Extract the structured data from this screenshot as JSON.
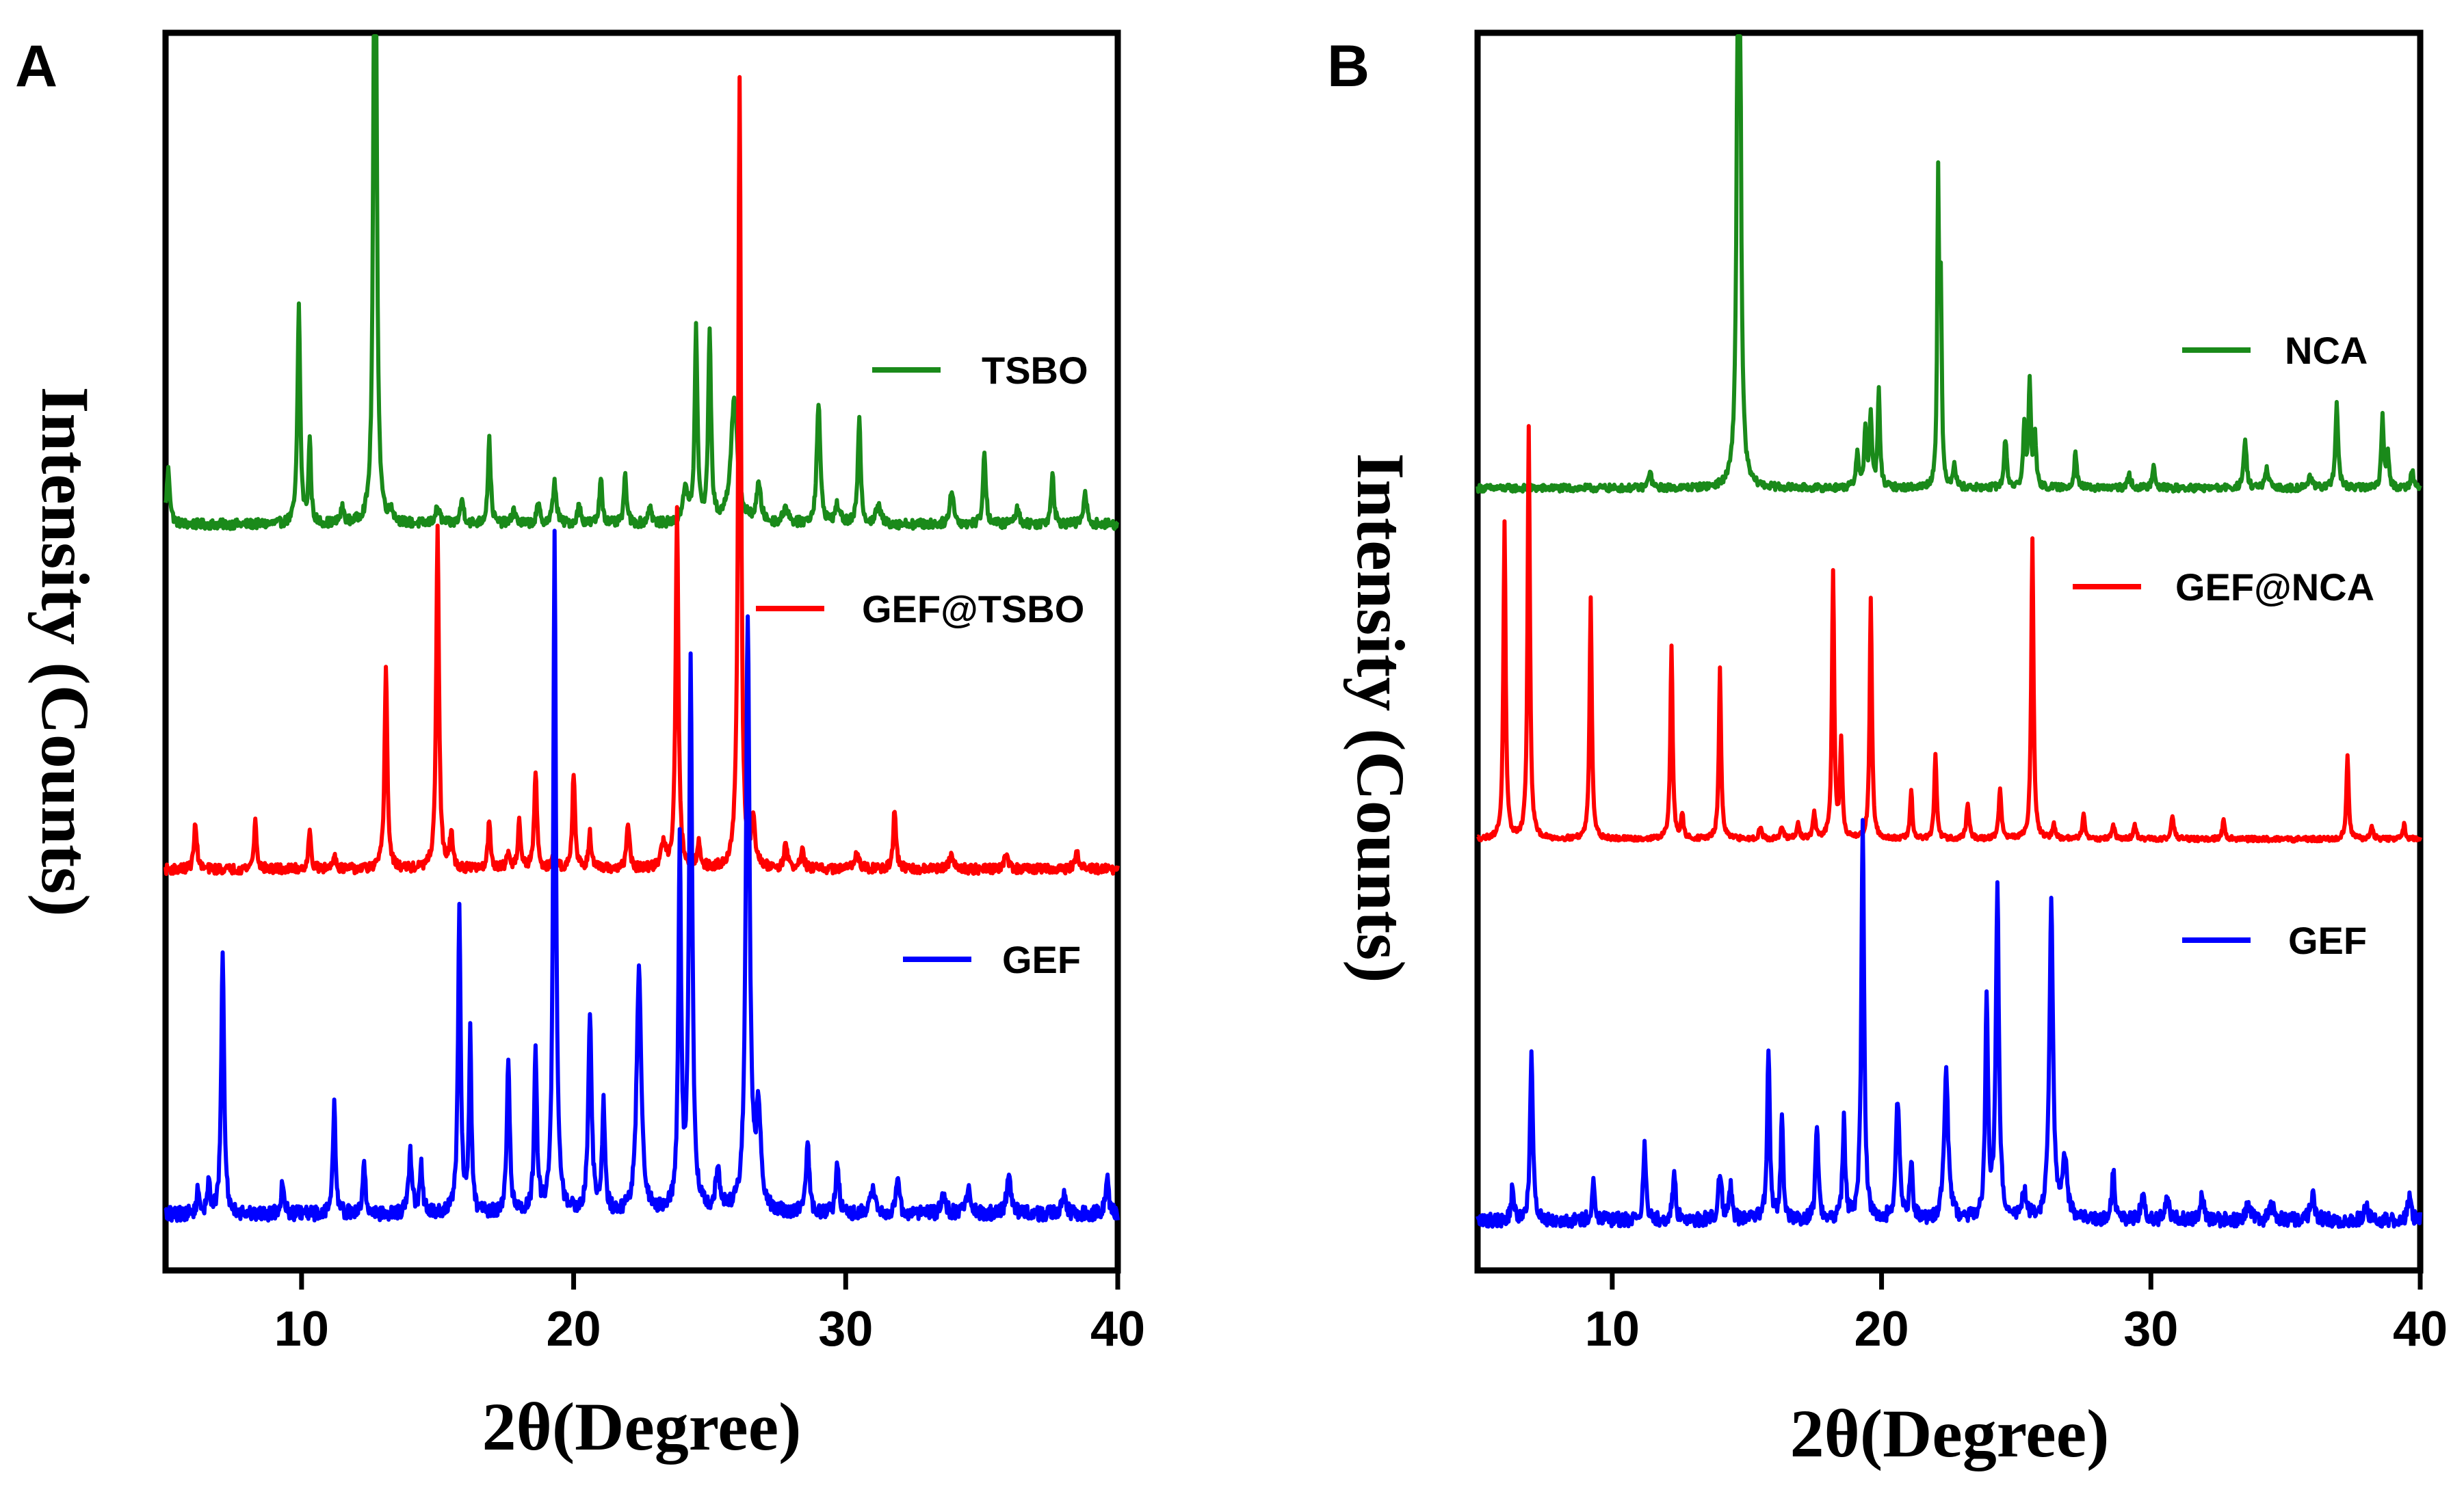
{
  "chart_data": [
    {
      "type": "line",
      "panel_label": "A",
      "xlabel": "2θ(Degree)",
      "ylabel": "Intensity (Counts)",
      "xlim": [
        5,
        40
      ],
      "xticks": [
        10,
        20,
        30,
        40
      ],
      "x_tick_labels": [
        "10",
        "20",
        "30",
        "40"
      ],
      "y_ticks": "none",
      "series": [
        {
          "name": "TSBO",
          "color": "#1a8a1a",
          "baseline": 0.605,
          "noise": 0.004,
          "peaks": [
            [
              5.1,
              0.045,
              0.15
            ],
            [
              9.9,
              0.18,
              0.12
            ],
            [
              10.3,
              0.07,
              0.1
            ],
            [
              11.5,
              0.012,
              0.15
            ],
            [
              12.7,
              0.92,
              0.1
            ],
            [
              13.3,
              0.01,
              0.15
            ],
            [
              15.0,
              0.013,
              0.2
            ],
            [
              15.9,
              0.02,
              0.15
            ],
            [
              16.9,
              0.07,
              0.12
            ],
            [
              17.8,
              0.012,
              0.15
            ],
            [
              18.7,
              0.015,
              0.15
            ],
            [
              19.3,
              0.035,
              0.15
            ],
            [
              20.2,
              0.015,
              0.15
            ],
            [
              21.0,
              0.04,
              0.12
            ],
            [
              21.9,
              0.04,
              0.12
            ],
            [
              22.8,
              0.015,
              0.15
            ],
            [
              24.1,
              0.03,
              0.2
            ],
            [
              24.5,
              0.16,
              0.12
            ],
            [
              25.0,
              0.16,
              0.12
            ],
            [
              25.9,
              0.1,
              0.3
            ],
            [
              26.8,
              0.03,
              0.2
            ],
            [
              27.8,
              0.015,
              0.2
            ],
            [
              29.0,
              0.1,
              0.15
            ],
            [
              29.7,
              0.015,
              0.2
            ],
            [
              30.5,
              0.09,
              0.12
            ],
            [
              31.2,
              0.015,
              0.2
            ],
            [
              33.9,
              0.03,
              0.15
            ],
            [
              35.1,
              0.06,
              0.12
            ],
            [
              36.3,
              0.012,
              0.2
            ],
            [
              37.6,
              0.045,
              0.12
            ],
            [
              38.8,
              0.025,
              0.15
            ]
          ]
        },
        {
          "name": "GEF@TSBO",
          "color": "#ff0000",
          "baseline": 0.32,
          "noise": 0.004,
          "peaks": [
            [
              6.1,
              0.04,
              0.12
            ],
            [
              8.3,
              0.04,
              0.12
            ],
            [
              10.3,
              0.03,
              0.12
            ],
            [
              11.2,
              0.012,
              0.15
            ],
            [
              13.1,
              0.17,
              0.12
            ],
            [
              15.0,
              0.28,
              0.12
            ],
            [
              15.5,
              0.03,
              0.12
            ],
            [
              16.9,
              0.04,
              0.12
            ],
            [
              17.6,
              0.012,
              0.15
            ],
            [
              18.0,
              0.04,
              0.12
            ],
            [
              18.6,
              0.08,
              0.12
            ],
            [
              19.3,
              0.012,
              0.15
            ],
            [
              20.0,
              0.08,
              0.12
            ],
            [
              20.6,
              0.03,
              0.12
            ],
            [
              22.0,
              0.04,
              0.12
            ],
            [
              23.3,
              0.02,
              0.2
            ],
            [
              23.8,
              0.3,
              0.12
            ],
            [
              24.6,
              0.02,
              0.15
            ],
            [
              26.1,
              0.65,
              0.12
            ],
            [
              26.6,
              0.04,
              0.15
            ],
            [
              27.8,
              0.02,
              0.15
            ],
            [
              28.4,
              0.015,
              0.15
            ],
            [
              30.4,
              0.015,
              0.2
            ],
            [
              31.8,
              0.05,
              0.12
            ],
            [
              33.9,
              0.012,
              0.2
            ],
            [
              35.9,
              0.012,
              0.2
            ],
            [
              38.5,
              0.012,
              0.2
            ]
          ]
        },
        {
          "name": "GEF",
          "color": "#0000ff",
          "baseline": 0.035,
          "noise": 0.006,
          "peaks": [
            [
              6.2,
              0.02,
              0.12
            ],
            [
              6.6,
              0.03,
              0.1
            ],
            [
              7.1,
              0.22,
              0.12
            ],
            [
              9.3,
              0.03,
              0.12
            ],
            [
              11.2,
              0.09,
              0.12
            ],
            [
              12.3,
              0.04,
              0.12
            ],
            [
              14.0,
              0.05,
              0.15
            ],
            [
              14.4,
              0.04,
              0.12
            ],
            [
              15.8,
              0.25,
              0.12
            ],
            [
              16.2,
              0.15,
              0.1
            ],
            [
              17.6,
              0.13,
              0.12
            ],
            [
              18.6,
              0.13,
              0.12
            ],
            [
              19.3,
              0.56,
              0.12
            ],
            [
              20.6,
              0.16,
              0.15
            ],
            [
              21.1,
              0.09,
              0.12
            ],
            [
              22.4,
              0.2,
              0.2
            ],
            [
              23.9,
              0.3,
              0.12
            ],
            [
              24.3,
              0.45,
              0.14
            ],
            [
              25.3,
              0.03,
              0.2
            ],
            [
              26.4,
              0.49,
              0.16
            ],
            [
              26.8,
              0.08,
              0.2
            ],
            [
              28.6,
              0.06,
              0.14
            ],
            [
              29.7,
              0.04,
              0.15
            ],
            [
              31.0,
              0.02,
              0.2
            ],
            [
              31.9,
              0.03,
              0.15
            ],
            [
              33.6,
              0.015,
              0.2
            ],
            [
              34.5,
              0.02,
              0.2
            ],
            [
              36.0,
              0.03,
              0.2
            ],
            [
              38.0,
              0.015,
              0.2
            ],
            [
              39.6,
              0.03,
              0.15
            ]
          ]
        }
      ]
    },
    {
      "type": "line",
      "panel_label": "B",
      "xlabel": "2θ(Degree)",
      "ylabel": "Intensity (Counts)",
      "xlim": [
        5,
        40
      ],
      "xticks": [
        10,
        20,
        30,
        40
      ],
      "x_tick_labels": [
        "10",
        "20",
        "30",
        "40"
      ],
      "y_ticks": "none",
      "series": [
        {
          "name": "NCA",
          "color": "#1a8a1a",
          "baseline": 0.635,
          "noise": 0.003,
          "peaks": [
            [
              11.4,
              0.015,
              0.12
            ],
            [
              14.7,
              1.02,
              0.1
            ],
            [
              19.1,
              0.03,
              0.12
            ],
            [
              19.4,
              0.05,
              0.1
            ],
            [
              19.6,
              0.06,
              0.1
            ],
            [
              19.9,
              0.08,
              0.1
            ],
            [
              22.1,
              0.25,
              0.08
            ],
            [
              22.2,
              0.15,
              0.08
            ],
            [
              22.7,
              0.02,
              0.12
            ],
            [
              24.6,
              0.04,
              0.12
            ],
            [
              25.3,
              0.05,
              0.1
            ],
            [
              25.5,
              0.09,
              0.1
            ],
            [
              25.7,
              0.04,
              0.1
            ],
            [
              27.2,
              0.03,
              0.12
            ],
            [
              29.2,
              0.01,
              0.15
            ],
            [
              30.1,
              0.02,
              0.12
            ],
            [
              33.5,
              0.04,
              0.12
            ],
            [
              34.3,
              0.015,
              0.15
            ],
            [
              35.9,
              0.01,
              0.15
            ],
            [
              36.9,
              0.07,
              0.12
            ],
            [
              38.6,
              0.06,
              0.1
            ],
            [
              38.8,
              0.03,
              0.1
            ],
            [
              39.7,
              0.015,
              0.12
            ]
          ]
        },
        {
          "name": "GEF@NCA",
          "color": "#ff0000",
          "baseline": 0.345,
          "noise": 0.002,
          "peaks": [
            [
              6.0,
              0.26,
              0.1
            ],
            [
              6.9,
              0.34,
              0.1
            ],
            [
              9.2,
              0.2,
              0.1
            ],
            [
              12.2,
              0.16,
              0.1
            ],
            [
              12.6,
              0.02,
              0.1
            ],
            [
              14.0,
              0.14,
              0.1
            ],
            [
              15.5,
              0.01,
              0.12
            ],
            [
              16.3,
              0.01,
              0.12
            ],
            [
              16.9,
              0.012,
              0.12
            ],
            [
              17.5,
              0.02,
              0.12
            ],
            [
              18.2,
              0.22,
              0.1
            ],
            [
              18.5,
              0.08,
              0.1
            ],
            [
              19.6,
              0.2,
              0.1
            ],
            [
              21.1,
              0.04,
              0.1
            ],
            [
              22.0,
              0.07,
              0.1
            ],
            [
              23.2,
              0.03,
              0.12
            ],
            [
              24.4,
              0.04,
              0.12
            ],
            [
              25.6,
              0.25,
              0.1
            ],
            [
              26.4,
              0.012,
              0.12
            ],
            [
              27.5,
              0.02,
              0.12
            ],
            [
              28.6,
              0.012,
              0.12
            ],
            [
              29.4,
              0.012,
              0.12
            ],
            [
              30.8,
              0.02,
              0.12
            ],
            [
              32.7,
              0.015,
              0.12
            ],
            [
              37.3,
              0.07,
              0.1
            ],
            [
              38.2,
              0.012,
              0.12
            ],
            [
              39.4,
              0.012,
              0.12
            ]
          ]
        },
        {
          "name": "GEF",
          "color": "#0000ff",
          "baseline": 0.03,
          "noise": 0.006,
          "peaks": [
            [
              6.3,
              0.03,
              0.1
            ],
            [
              7.0,
              0.14,
              0.12
            ],
            [
              9.3,
              0.03,
              0.12
            ],
            [
              11.2,
              0.06,
              0.12
            ],
            [
              12.3,
              0.04,
              0.12
            ],
            [
              14.0,
              0.04,
              0.15
            ],
            [
              14.4,
              0.03,
              0.12
            ],
            [
              15.8,
              0.14,
              0.12
            ],
            [
              16.3,
              0.09,
              0.1
            ],
            [
              17.6,
              0.08,
              0.12
            ],
            [
              18.6,
              0.08,
              0.12
            ],
            [
              19.3,
              0.33,
              0.12
            ],
            [
              20.6,
              0.1,
              0.15
            ],
            [
              21.1,
              0.05,
              0.12
            ],
            [
              22.4,
              0.12,
              0.18
            ],
            [
              23.9,
              0.18,
              0.12
            ],
            [
              24.3,
              0.27,
              0.14
            ],
            [
              25.3,
              0.02,
              0.2
            ],
            [
              26.3,
              0.26,
              0.16
            ],
            [
              26.8,
              0.05,
              0.2
            ],
            [
              28.6,
              0.04,
              0.14
            ],
            [
              29.7,
              0.025,
              0.15
            ],
            [
              30.6,
              0.015,
              0.2
            ],
            [
              31.9,
              0.02,
              0.15
            ],
            [
              33.6,
              0.012,
              0.2
            ],
            [
              34.5,
              0.012,
              0.2
            ],
            [
              36.0,
              0.02,
              0.2
            ],
            [
              38.0,
              0.01,
              0.2
            ],
            [
              39.6,
              0.02,
              0.15
            ]
          ]
        }
      ]
    }
  ]
}
